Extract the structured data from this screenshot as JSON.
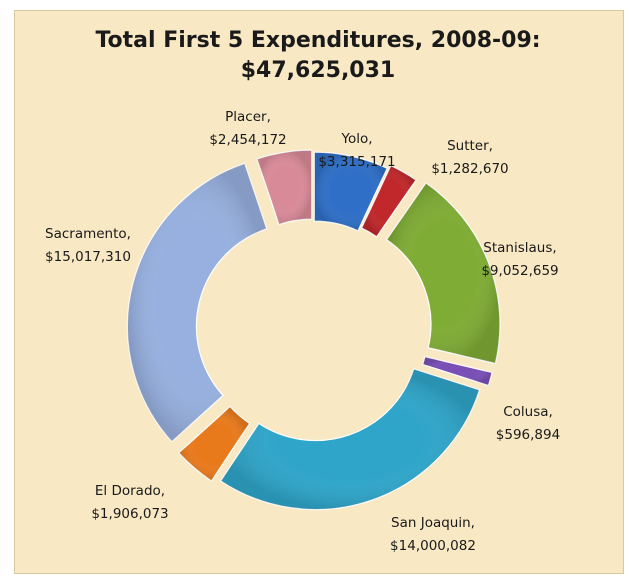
{
  "chart_data": {
    "type": "pie",
    "variant": "doughnut, exploded",
    "title": "Total First 5 Expenditures, 2008-09:",
    "subtitle": "$47,625,031",
    "legend": "none",
    "slices": [
      {
        "name": "Yolo,",
        "value_label": "$3,315,171",
        "value": 3315171,
        "color": "#2f6fc7"
      },
      {
        "name": "Sutter,",
        "value_label": "$1,282,670",
        "value": 1282670,
        "color": "#c0282b"
      },
      {
        "name": "Stanislaus,",
        "value_label": "$9,052,659",
        "value": 9052659,
        "color": "#7fac35"
      },
      {
        "name": "Colusa,",
        "value_label": "$596,894",
        "value": 596894,
        "color": "#7a4fb6"
      },
      {
        "name": "San Joaquin,",
        "value_label": "$14,000,082",
        "value": 14000082,
        "color": "#2fa5c9"
      },
      {
        "name": "El Dorado,",
        "value_label": "$1,906,073",
        "value": 1906073,
        "color": "#e97a1c"
      },
      {
        "name": "Sacramento,",
        "value_label": "$15,017,310",
        "value": 15017310,
        "color": "#97b0df"
      },
      {
        "name": "Placer,",
        "value_label": "$2,454,172",
        "value": 2454172,
        "color": "#d98a98"
      }
    ]
  }
}
